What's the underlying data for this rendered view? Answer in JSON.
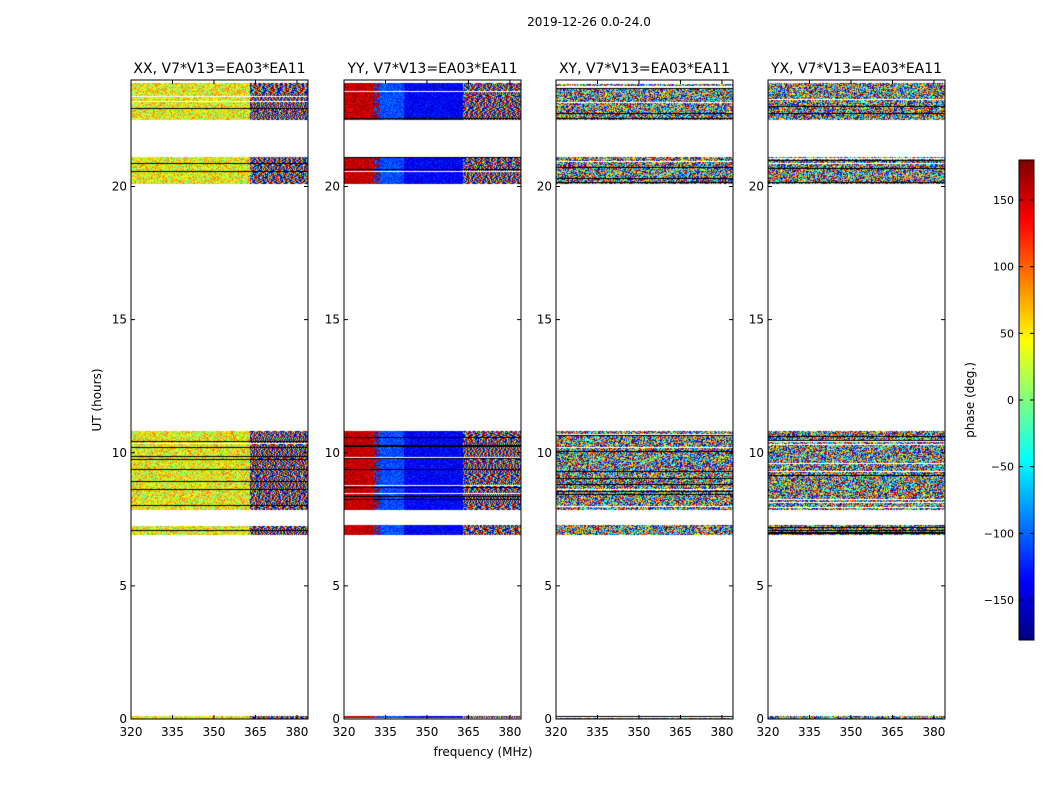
{
  "figure": {
    "suptitle": "2019-12-26 0.0-24.0"
  },
  "chart_data": {
    "type": "heatmap",
    "title": "2019-12-26 0.0-24.0",
    "xlabel": "frequency (MHz)",
    "ylabel": "UT (hours)",
    "xlim": [
      320,
      384
    ],
    "ylim": [
      0,
      24
    ],
    "xticks": [
      "320",
      "335",
      "350",
      "365",
      "380"
    ],
    "xtick_values": [
      320,
      335,
      350,
      365,
      380
    ],
    "yticks": [
      "0",
      "5",
      "10",
      "15",
      "20"
    ],
    "ytick_values": [
      0,
      5,
      10,
      15,
      20
    ],
    "data_bands_ut_hours": [
      [
        0.0,
        0.1
      ],
      [
        6.9,
        7.3
      ],
      [
        7.85,
        10.8
      ],
      [
        20.1,
        21.1
      ],
      [
        22.5,
        23.9
      ]
    ],
    "panels": [
      {
        "title": "XX, V7*V13=EA03*EA11",
        "pattern": "xx"
      },
      {
        "title": "YY, V7*V13=EA03*EA11",
        "pattern": "yy"
      },
      {
        "title": "XY, V7*V13=EA03*EA11",
        "pattern": "noise"
      },
      {
        "title": "YX, V7*V13=EA03*EA11",
        "pattern": "noise"
      }
    ],
    "colorbar": {
      "label": "phase (deg.)",
      "range": [
        -180,
        180
      ],
      "ticks": [
        "150",
        "100",
        "50",
        "0",
        "−50",
        "−100",
        "−150"
      ],
      "tick_values": [
        150,
        100,
        50,
        0,
        -50,
        -100,
        -150
      ],
      "colormap": "jet"
    }
  },
  "colors": {
    "axes": "#000000",
    "background": "#ffffff"
  }
}
